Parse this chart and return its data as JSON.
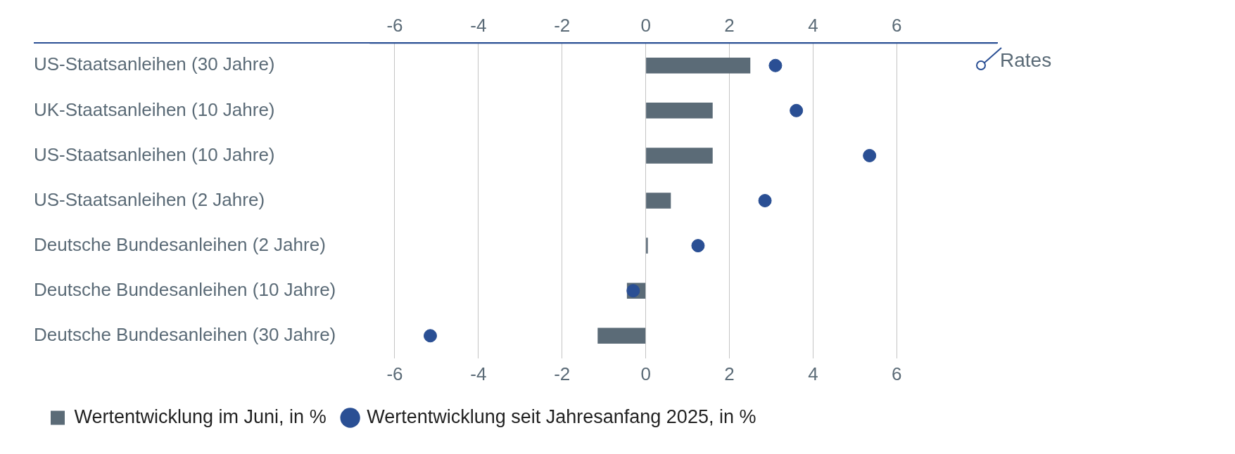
{
  "chart_data": {
    "type": "bar",
    "orientation": "horizontal",
    "categories": [
      "US-Staatsanleihen (30 Jahre)",
      "UK-Staatsanleihen (10 Jahre)",
      "US-Staatsanleihen (10 Jahre)",
      "US-Staatsanleihen (2 Jahre)",
      "Deutsche Bundesanleihen (2 Jahre)",
      "Deutsche Bundesanleihen (10 Jahre)",
      "Deutsche Bundesanleihen (30 Jahre)"
    ],
    "series": [
      {
        "name": "Wertentwicklung im Juni, in %",
        "color": "#5b6b77",
        "values": [
          2.5,
          1.6,
          1.6,
          0.6,
          0.05,
          -0.45,
          -1.15
        ]
      },
      {
        "name": "Wertentwicklung seit Jahresanfang 2025, in %",
        "type": "scatter",
        "color": "#2a4f94",
        "marker": "circle",
        "values": [
          3.1,
          3.6,
          5.35,
          2.85,
          1.25,
          -0.3,
          -5.15
        ]
      }
    ],
    "xlim": [
      -6.6,
      8.4
    ],
    "xticks": [
      -6,
      -4,
      -2,
      0,
      2,
      4,
      6
    ],
    "x2lim": [
      -6.6,
      8.4
    ],
    "x2ticks": [
      -6,
      -4,
      -2,
      0,
      2,
      4,
      6
    ],
    "grid": "x",
    "legend": "bottom",
    "annotations": [
      "Rates"
    ]
  }
}
